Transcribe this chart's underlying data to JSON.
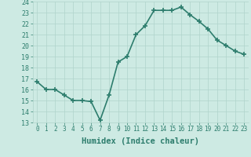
{
  "x": [
    0,
    1,
    2,
    3,
    4,
    5,
    6,
    7,
    8,
    9,
    10,
    11,
    12,
    13,
    14,
    15,
    16,
    17,
    18,
    19,
    20,
    21,
    22,
    23
  ],
  "y": [
    16.7,
    16.0,
    16.0,
    15.5,
    15.0,
    15.0,
    14.9,
    13.2,
    15.5,
    18.5,
    19.0,
    21.0,
    21.8,
    23.2,
    23.2,
    23.2,
    23.5,
    22.8,
    22.2,
    21.5,
    20.5,
    20.0,
    19.5,
    19.2
  ],
  "xlabel": "Humidex (Indice chaleur)",
  "ylim": [
    13,
    24
  ],
  "xlim": [
    -0.5,
    23.5
  ],
  "yticks": [
    13,
    14,
    15,
    16,
    17,
    18,
    19,
    20,
    21,
    22,
    23,
    24
  ],
  "xticks": [
    0,
    1,
    2,
    3,
    4,
    5,
    6,
    7,
    8,
    9,
    10,
    11,
    12,
    13,
    14,
    15,
    16,
    17,
    18,
    19,
    20,
    21,
    22,
    23
  ],
  "xtick_labels": [
    "0",
    "1",
    "2",
    "3",
    "4",
    "5",
    "6",
    "7",
    "8",
    "9",
    "10",
    "11",
    "12",
    "13",
    "14",
    "15",
    "16",
    "17",
    "18",
    "19",
    "20",
    "21",
    "22",
    "23"
  ],
  "line_color": "#2d7d6d",
  "marker": "+",
  "marker_size": 4,
  "line_width": 1.2,
  "bg_color": "#cdeae3",
  "grid_color": "#b0d4cc",
  "fig_bg": "#cdeae3",
  "tick_color": "#2d7d6d",
  "xlabel_fontsize": 7.5,
  "tick_fontsize": 5.5,
  "ytick_fontsize": 6.0
}
